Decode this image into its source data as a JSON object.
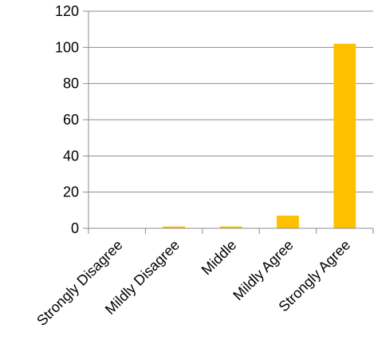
{
  "chart_data": {
    "type": "bar",
    "title": "",
    "xlabel": "",
    "ylabel": "",
    "categories": [
      "Strongly Disagree",
      "Mildly Disagree",
      "Middle",
      "Mildly Agree",
      "Strongly Agree"
    ],
    "values": [
      0,
      1,
      1,
      7,
      102
    ],
    "ylim": [
      0,
      120
    ],
    "yticks": [
      0,
      20,
      40,
      60,
      80,
      100,
      120
    ],
    "grid": true,
    "legend": "none",
    "bar_color": "#FFC000"
  }
}
